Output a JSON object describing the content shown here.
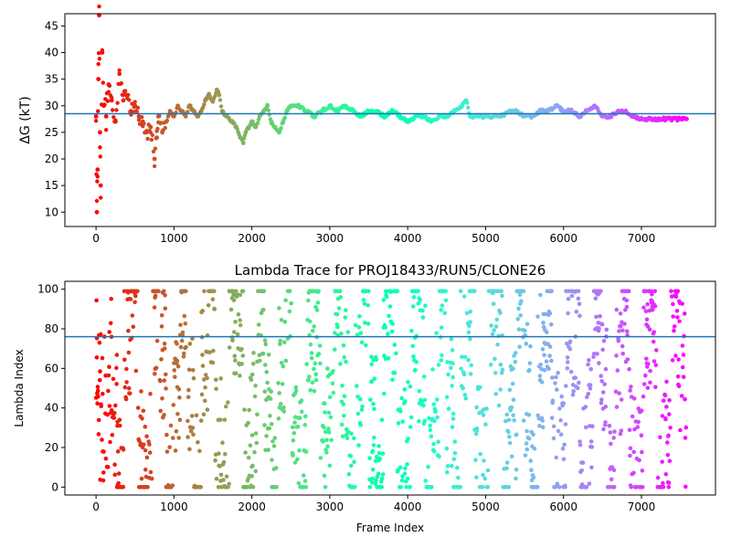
{
  "chart_data": [
    {
      "type": "scatter",
      "title": "",
      "xlabel": "",
      "ylabel": "ΔG (kT)",
      "xlim": [
        -400,
        7950
      ],
      "ylim": [
        7.3,
        47.3
      ],
      "xticks": [
        0,
        1000,
        2000,
        3000,
        4000,
        5000,
        6000,
        7000
      ],
      "yticks": [
        10,
        15,
        20,
        25,
        30,
        35,
        40,
        45
      ],
      "hline": 28.5,
      "hline_color": "#1f77b4",
      "colormap": "rainbow (red at start, violet at end)",
      "series": [
        {
          "x": [
            0,
            10,
            20,
            30,
            40,
            50,
            60,
            80,
            100,
            130,
            160,
            200,
            250,
            300,
            350,
            400,
            450,
            500,
            550,
            600,
            650,
            700,
            750,
            780,
            800,
            850,
            900,
            950,
            1000,
            1050,
            1100,
            1150,
            1200,
            1250,
            1300,
            1350,
            1400,
            1450,
            1500,
            1550,
            1580,
            1620,
            1680,
            1750,
            1800,
            1850,
            1890,
            1920,
            1960,
            2000,
            2050,
            2100,
            2150,
            2200,
            2250,
            2300,
            2350,
            2400,
            2450,
            2500,
            2600,
            2700,
            2800,
            2900,
            3000,
            3100,
            3200,
            3300,
            3400,
            3500,
            3600,
            3700,
            3800,
            3900,
            4000,
            4100,
            4200,
            4300,
            4400,
            4500,
            4600,
            4700,
            4750,
            4800,
            4900,
            5000,
            5100,
            5200,
            5300,
            5400,
            5500,
            5600,
            5700,
            5800,
            5900,
            6000,
            6100,
            6200,
            6300,
            6400,
            6500,
            6600,
            6700,
            6800,
            6900,
            7000,
            7100,
            7200,
            7300,
            7400,
            7500,
            7580
          ],
          "y": [
            28,
            10,
            18,
            35,
            47,
            25,
            15,
            40,
            30,
            28,
            34,
            31,
            27,
            36,
            31,
            32,
            29,
            30,
            28,
            27,
            25,
            26,
            20,
            24,
            28,
            25,
            27,
            29,
            28,
            30,
            29,
            28,
            30,
            29,
            28,
            29,
            31,
            32,
            31,
            33,
            32,
            29,
            28,
            27,
            26,
            24,
            23,
            25,
            26,
            27,
            26,
            28,
            29,
            30,
            27,
            26,
            25,
            27,
            29,
            30,
            30,
            29,
            28,
            29,
            30,
            29,
            30,
            29,
            28,
            29,
            29,
            28,
            29,
            28,
            27,
            28,
            28,
            27,
            28,
            28,
            29,
            30,
            31,
            28,
            28,
            28,
            28,
            28,
            29,
            29,
            28,
            28,
            29,
            29,
            30,
            29,
            29,
            28,
            29,
            30,
            28,
            28,
            29,
            29,
            28,
            27.5,
            27.5,
            27.5,
            27.5,
            27.5,
            27.5,
            27.5
          ]
        }
      ]
    },
    {
      "type": "scatter",
      "title": "Lambda Trace for PROJ18433/RUN5/CLONE26",
      "xlabel": "Frame Index",
      "ylabel": "Lambda Index",
      "xlim": [
        -400,
        7950
      ],
      "ylim": [
        -4,
        104
      ],
      "xticks": [
        0,
        1000,
        2000,
        3000,
        4000,
        5000,
        6000,
        7000
      ],
      "yticks": [
        0,
        20,
        40,
        60,
        80,
        100
      ],
      "hline": 76,
      "hline_color": "#1f77b4",
      "colormap": "rainbow (red at start, violet at end)",
      "lambda_range": [
        0,
        99
      ],
      "frame_range": [
        0,
        7580
      ]
    }
  ]
}
